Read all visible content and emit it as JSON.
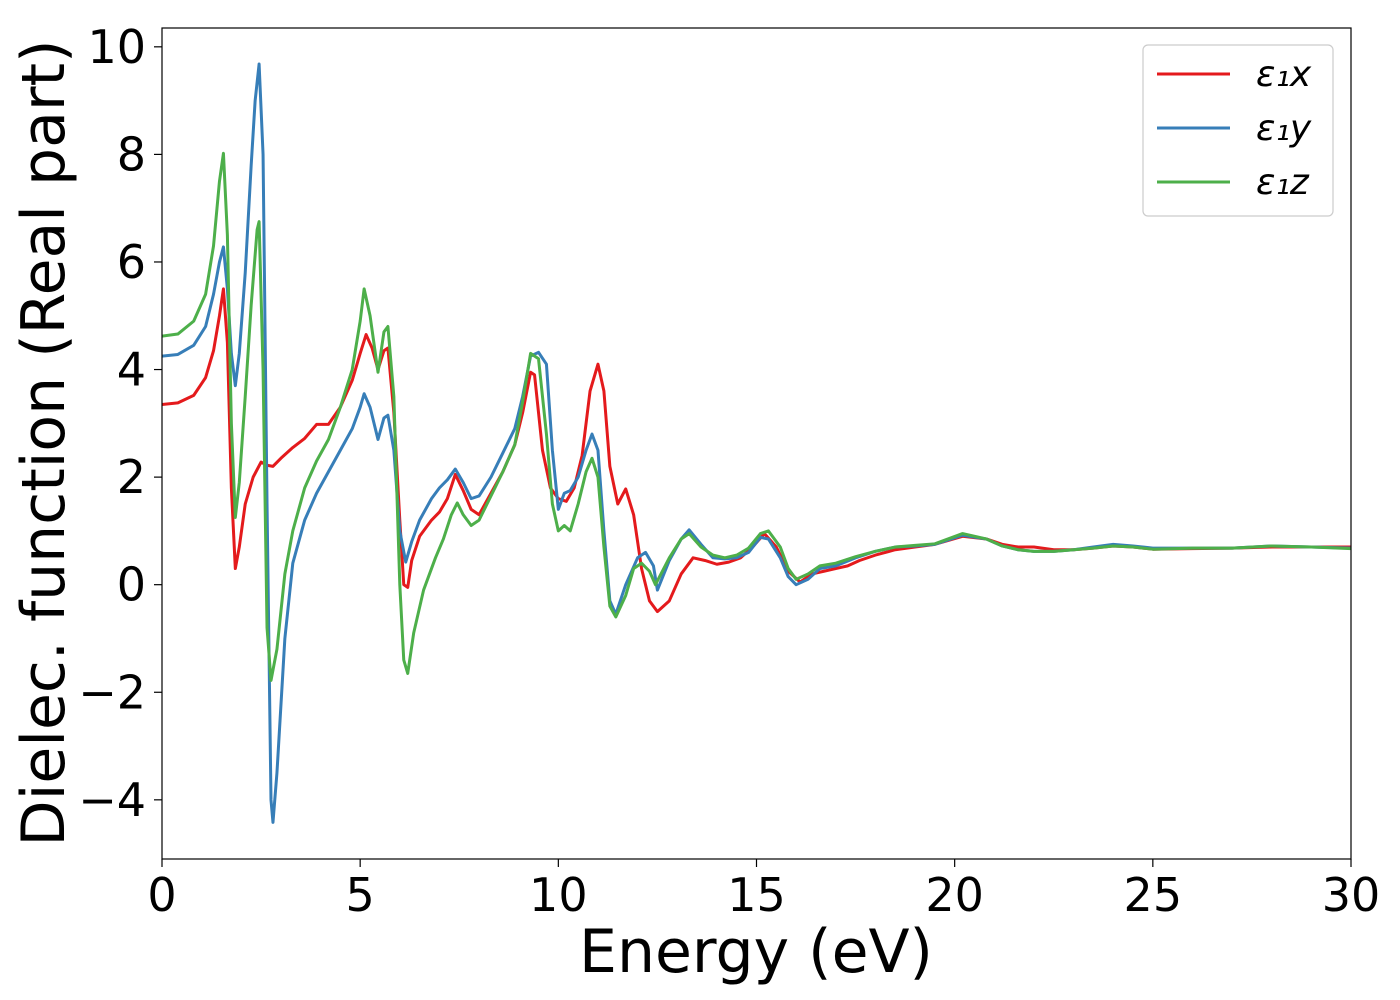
{
  "chart_data": {
    "type": "line",
    "title": "",
    "xlabel": "Energy (eV)",
    "ylabel": "Dielec. function (Real part)",
    "xlim": [
      0,
      30
    ],
    "ylim": [
      -5.1,
      10.35
    ],
    "xticks": [
      0,
      5,
      10,
      15,
      20,
      25,
      30
    ],
    "yticks": [
      -4,
      -2,
      0,
      2,
      4,
      6,
      8,
      10
    ],
    "xtick_labels": [
      "0",
      "5",
      "10",
      "15",
      "20",
      "25",
      "30"
    ],
    "ytick_labels": [
      "−4",
      "−2",
      "0",
      "2",
      "4",
      "6",
      "8",
      "10"
    ],
    "grid": false,
    "legend_position": "top-right",
    "series": [
      {
        "name": "ε₁x",
        "color": "#e41a1c",
        "points": [
          [
            0,
            3.35
          ],
          [
            0.4,
            3.38
          ],
          [
            0.8,
            3.52
          ],
          [
            1.1,
            3.85
          ],
          [
            1.3,
            4.35
          ],
          [
            1.45,
            5.0
          ],
          [
            1.55,
            5.5
          ],
          [
            1.65,
            4.5
          ],
          [
            1.75,
            1.8
          ],
          [
            1.85,
            0.3
          ],
          [
            1.95,
            0.7
          ],
          [
            2.1,
            1.5
          ],
          [
            2.3,
            2.0
          ],
          [
            2.5,
            2.28
          ],
          [
            2.65,
            2.22
          ],
          [
            2.8,
            2.2
          ],
          [
            3.0,
            2.35
          ],
          [
            3.3,
            2.55
          ],
          [
            3.6,
            2.72
          ],
          [
            3.9,
            2.98
          ],
          [
            4.2,
            2.98
          ],
          [
            4.5,
            3.3
          ],
          [
            4.8,
            3.8
          ],
          [
            5.0,
            4.3
          ],
          [
            5.15,
            4.65
          ],
          [
            5.3,
            4.4
          ],
          [
            5.45,
            4.0
          ],
          [
            5.6,
            4.35
          ],
          [
            5.7,
            4.4
          ],
          [
            5.85,
            3.2
          ],
          [
            6.0,
            1.2
          ],
          [
            6.1,
            0.0
          ],
          [
            6.2,
            -0.05
          ],
          [
            6.3,
            0.45
          ],
          [
            6.5,
            0.9
          ],
          [
            6.8,
            1.2
          ],
          [
            7.0,
            1.35
          ],
          [
            7.2,
            1.6
          ],
          [
            7.4,
            2.05
          ],
          [
            7.6,
            1.75
          ],
          [
            7.8,
            1.4
          ],
          [
            8.0,
            1.3
          ],
          [
            8.3,
            1.7
          ],
          [
            8.6,
            2.1
          ],
          [
            8.9,
            2.6
          ],
          [
            9.1,
            3.2
          ],
          [
            9.3,
            3.95
          ],
          [
            9.4,
            3.9
          ],
          [
            9.6,
            2.5
          ],
          [
            9.8,
            1.8
          ],
          [
            10.0,
            1.6
          ],
          [
            10.2,
            1.55
          ],
          [
            10.4,
            1.8
          ],
          [
            10.6,
            2.4
          ],
          [
            10.8,
            3.6
          ],
          [
            11.0,
            4.1
          ],
          [
            11.15,
            3.6
          ],
          [
            11.3,
            2.2
          ],
          [
            11.5,
            1.5
          ],
          [
            11.7,
            1.78
          ],
          [
            11.9,
            1.3
          ],
          [
            12.1,
            0.3
          ],
          [
            12.3,
            -0.3
          ],
          [
            12.5,
            -0.5
          ],
          [
            12.8,
            -0.3
          ],
          [
            13.1,
            0.2
          ],
          [
            13.4,
            0.5
          ],
          [
            13.7,
            0.45
          ],
          [
            14.0,
            0.38
          ],
          [
            14.3,
            0.42
          ],
          [
            14.6,
            0.5
          ],
          [
            14.9,
            0.7
          ],
          [
            15.2,
            0.95
          ],
          [
            15.5,
            0.7
          ],
          [
            15.8,
            0.25
          ],
          [
            16.1,
            0.05
          ],
          [
            16.4,
            0.2
          ],
          [
            16.7,
            0.25
          ],
          [
            17.0,
            0.3
          ],
          [
            17.3,
            0.35
          ],
          [
            17.6,
            0.45
          ],
          [
            18.0,
            0.55
          ],
          [
            18.5,
            0.65
          ],
          [
            19.0,
            0.7
          ],
          [
            19.5,
            0.75
          ],
          [
            20.2,
            0.9
          ],
          [
            20.8,
            0.85
          ],
          [
            21.2,
            0.75
          ],
          [
            21.6,
            0.7
          ],
          [
            22.0,
            0.7
          ],
          [
            22.5,
            0.65
          ],
          [
            23.0,
            0.65
          ],
          [
            23.5,
            0.68
          ],
          [
            24.0,
            0.72
          ],
          [
            24.5,
            0.7
          ],
          [
            25.0,
            0.66
          ],
          [
            26.0,
            0.67
          ],
          [
            27.0,
            0.68
          ],
          [
            28.0,
            0.7
          ],
          [
            29.0,
            0.7
          ],
          [
            30.0,
            0.7
          ]
        ]
      },
      {
        "name": "ε₁y",
        "color": "#377eb8",
        "points": [
          [
            0,
            4.25
          ],
          [
            0.4,
            4.28
          ],
          [
            0.8,
            4.45
          ],
          [
            1.1,
            4.8
          ],
          [
            1.3,
            5.4
          ],
          [
            1.45,
            6.0
          ],
          [
            1.55,
            6.28
          ],
          [
            1.65,
            5.5
          ],
          [
            1.75,
            4.3
          ],
          [
            1.85,
            3.7
          ],
          [
            1.95,
            4.3
          ],
          [
            2.1,
            5.8
          ],
          [
            2.25,
            7.8
          ],
          [
            2.35,
            9.0
          ],
          [
            2.45,
            9.68
          ],
          [
            2.55,
            8.0
          ],
          [
            2.65,
            1.5
          ],
          [
            2.75,
            -4.0
          ],
          [
            2.8,
            -4.42
          ],
          [
            2.9,
            -3.5
          ],
          [
            3.1,
            -1.0
          ],
          [
            3.3,
            0.4
          ],
          [
            3.6,
            1.2
          ],
          [
            3.9,
            1.7
          ],
          [
            4.2,
            2.1
          ],
          [
            4.5,
            2.5
          ],
          [
            4.8,
            2.9
          ],
          [
            5.0,
            3.3
          ],
          [
            5.1,
            3.55
          ],
          [
            5.25,
            3.3
          ],
          [
            5.45,
            2.7
          ],
          [
            5.6,
            3.1
          ],
          [
            5.7,
            3.15
          ],
          [
            5.85,
            2.5
          ],
          [
            6.0,
            1.0
          ],
          [
            6.15,
            0.42
          ],
          [
            6.3,
            0.8
          ],
          [
            6.5,
            1.2
          ],
          [
            6.8,
            1.6
          ],
          [
            7.0,
            1.8
          ],
          [
            7.2,
            1.95
          ],
          [
            7.4,
            2.15
          ],
          [
            7.6,
            1.9
          ],
          [
            7.8,
            1.6
          ],
          [
            8.0,
            1.65
          ],
          [
            8.3,
            2.0
          ],
          [
            8.6,
            2.45
          ],
          [
            8.9,
            2.9
          ],
          [
            9.1,
            3.5
          ],
          [
            9.3,
            4.25
          ],
          [
            9.5,
            4.32
          ],
          [
            9.7,
            4.1
          ],
          [
            9.85,
            2.5
          ],
          [
            10.0,
            1.4
          ],
          [
            10.15,
            1.7
          ],
          [
            10.3,
            1.75
          ],
          [
            10.5,
            2.0
          ],
          [
            10.7,
            2.5
          ],
          [
            10.85,
            2.8
          ],
          [
            11.0,
            2.5
          ],
          [
            11.15,
            1.0
          ],
          [
            11.3,
            -0.3
          ],
          [
            11.45,
            -0.55
          ],
          [
            11.7,
            0.0
          ],
          [
            12.0,
            0.5
          ],
          [
            12.2,
            0.6
          ],
          [
            12.4,
            0.35
          ],
          [
            12.5,
            -0.1
          ],
          [
            12.8,
            0.45
          ],
          [
            13.1,
            0.85
          ],
          [
            13.3,
            1.02
          ],
          [
            13.6,
            0.75
          ],
          [
            13.9,
            0.5
          ],
          [
            14.2,
            0.48
          ],
          [
            14.5,
            0.5
          ],
          [
            14.8,
            0.6
          ],
          [
            15.1,
            0.88
          ],
          [
            15.3,
            0.85
          ],
          [
            15.6,
            0.5
          ],
          [
            15.8,
            0.15
          ],
          [
            16.0,
            0.0
          ],
          [
            16.3,
            0.1
          ],
          [
            16.6,
            0.3
          ],
          [
            17.0,
            0.35
          ],
          [
            17.5,
            0.5
          ],
          [
            18.0,
            0.62
          ],
          [
            18.5,
            0.7
          ],
          [
            19.0,
            0.72
          ],
          [
            19.5,
            0.75
          ],
          [
            20.2,
            0.92
          ],
          [
            20.8,
            0.85
          ],
          [
            21.2,
            0.72
          ],
          [
            21.6,
            0.65
          ],
          [
            22.0,
            0.62
          ],
          [
            22.5,
            0.62
          ],
          [
            23.0,
            0.65
          ],
          [
            23.5,
            0.7
          ],
          [
            24.0,
            0.75
          ],
          [
            24.5,
            0.72
          ],
          [
            25.0,
            0.68
          ],
          [
            26.0,
            0.68
          ],
          [
            27.0,
            0.68
          ],
          [
            28.0,
            0.72
          ],
          [
            29.0,
            0.7
          ],
          [
            30.0,
            0.68
          ]
        ]
      },
      {
        "name": "ε₁z",
        "color": "#4daf4a",
        "points": [
          [
            0,
            4.62
          ],
          [
            0.4,
            4.66
          ],
          [
            0.8,
            4.9
          ],
          [
            1.1,
            5.4
          ],
          [
            1.3,
            6.3
          ],
          [
            1.45,
            7.5
          ],
          [
            1.55,
            8.02
          ],
          [
            1.65,
            6.5
          ],
          [
            1.75,
            3.0
          ],
          [
            1.85,
            1.25
          ],
          [
            1.95,
            1.9
          ],
          [
            2.1,
            3.5
          ],
          [
            2.25,
            5.2
          ],
          [
            2.4,
            6.6
          ],
          [
            2.45,
            6.75
          ],
          [
            2.55,
            4.0
          ],
          [
            2.65,
            -0.8
          ],
          [
            2.75,
            -1.78
          ],
          [
            2.9,
            -1.2
          ],
          [
            3.1,
            0.2
          ],
          [
            3.3,
            1.0
          ],
          [
            3.6,
            1.8
          ],
          [
            3.9,
            2.3
          ],
          [
            4.2,
            2.7
          ],
          [
            4.5,
            3.3
          ],
          [
            4.8,
            4.0
          ],
          [
            5.0,
            4.9
          ],
          [
            5.1,
            5.5
          ],
          [
            5.25,
            5.0
          ],
          [
            5.45,
            3.95
          ],
          [
            5.6,
            4.7
          ],
          [
            5.7,
            4.8
          ],
          [
            5.85,
            3.5
          ],
          [
            6.0,
            0.0
          ],
          [
            6.1,
            -1.4
          ],
          [
            6.2,
            -1.65
          ],
          [
            6.35,
            -0.9
          ],
          [
            6.6,
            -0.1
          ],
          [
            6.9,
            0.5
          ],
          [
            7.1,
            0.85
          ],
          [
            7.3,
            1.3
          ],
          [
            7.45,
            1.52
          ],
          [
            7.6,
            1.3
          ],
          [
            7.8,
            1.1
          ],
          [
            8.0,
            1.2
          ],
          [
            8.3,
            1.65
          ],
          [
            8.6,
            2.1
          ],
          [
            8.9,
            2.6
          ],
          [
            9.1,
            3.4
          ],
          [
            9.3,
            4.3
          ],
          [
            9.5,
            4.2
          ],
          [
            9.7,
            2.8
          ],
          [
            9.85,
            1.5
          ],
          [
            10.0,
            1.0
          ],
          [
            10.15,
            1.1
          ],
          [
            10.3,
            1.0
          ],
          [
            10.5,
            1.5
          ],
          [
            10.7,
            2.1
          ],
          [
            10.85,
            2.35
          ],
          [
            11.0,
            2.0
          ],
          [
            11.15,
            0.7
          ],
          [
            11.3,
            -0.4
          ],
          [
            11.45,
            -0.6
          ],
          [
            11.7,
            -0.2
          ],
          [
            11.9,
            0.3
          ],
          [
            12.1,
            0.4
          ],
          [
            12.3,
            0.25
          ],
          [
            12.45,
            0.0
          ],
          [
            12.8,
            0.5
          ],
          [
            13.1,
            0.85
          ],
          [
            13.3,
            0.95
          ],
          [
            13.6,
            0.7
          ],
          [
            13.9,
            0.55
          ],
          [
            14.2,
            0.5
          ],
          [
            14.5,
            0.55
          ],
          [
            14.8,
            0.68
          ],
          [
            15.1,
            0.95
          ],
          [
            15.3,
            1.0
          ],
          [
            15.6,
            0.7
          ],
          [
            15.8,
            0.3
          ],
          [
            16.0,
            0.1
          ],
          [
            16.3,
            0.2
          ],
          [
            16.6,
            0.35
          ],
          [
            17.0,
            0.4
          ],
          [
            17.5,
            0.52
          ],
          [
            18.0,
            0.62
          ],
          [
            18.5,
            0.7
          ],
          [
            19.0,
            0.73
          ],
          [
            19.5,
            0.76
          ],
          [
            20.2,
            0.95
          ],
          [
            20.8,
            0.85
          ],
          [
            21.2,
            0.72
          ],
          [
            21.6,
            0.65
          ],
          [
            22.0,
            0.62
          ],
          [
            22.5,
            0.62
          ],
          [
            23.0,
            0.65
          ],
          [
            23.5,
            0.68
          ],
          [
            24.0,
            0.72
          ],
          [
            24.5,
            0.7
          ],
          [
            25.0,
            0.66
          ],
          [
            26.0,
            0.68
          ],
          [
            27.0,
            0.68
          ],
          [
            28.0,
            0.72
          ],
          [
            29.0,
            0.7
          ],
          [
            30.0,
            0.67
          ]
        ]
      }
    ]
  }
}
